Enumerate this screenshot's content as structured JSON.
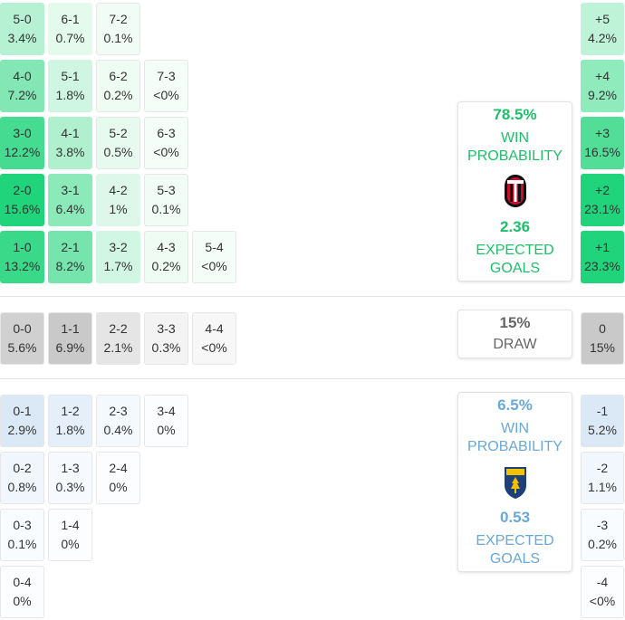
{
  "colors": {
    "home_accent": "#1fbf6a",
    "away_accent": "#6aa8d8",
    "draw_text": "#666666"
  },
  "home_scores": [
    [
      {
        "s": "5-0",
        "p": "3.4%"
      },
      {
        "s": "6-1",
        "p": "0.7%"
      },
      {
        "s": "7-2",
        "p": "0.1%"
      }
    ],
    [
      {
        "s": "4-0",
        "p": "7.2%"
      },
      {
        "s": "5-1",
        "p": "1.8%"
      },
      {
        "s": "6-2",
        "p": "0.2%"
      },
      {
        "s": "7-3",
        "p": "<0%"
      }
    ],
    [
      {
        "s": "3-0",
        "p": "12.2%"
      },
      {
        "s": "4-1",
        "p": "3.8%"
      },
      {
        "s": "5-2",
        "p": "0.5%"
      },
      {
        "s": "6-3",
        "p": "<0%"
      }
    ],
    [
      {
        "s": "2-0",
        "p": "15.6%"
      },
      {
        "s": "3-1",
        "p": "6.4%"
      },
      {
        "s": "4-2",
        "p": "1%"
      },
      {
        "s": "5-3",
        "p": "0.1%"
      }
    ],
    [
      {
        "s": "1-0",
        "p": "13.2%"
      },
      {
        "s": "2-1",
        "p": "8.2%"
      },
      {
        "s": "3-2",
        "p": "1.7%"
      },
      {
        "s": "4-3",
        "p": "0.2%"
      },
      {
        "s": "5-4",
        "p": "<0%"
      }
    ]
  ],
  "draw_scores": [
    [
      {
        "s": "0-0",
        "p": "5.6%"
      },
      {
        "s": "1-1",
        "p": "6.9%"
      },
      {
        "s": "2-2",
        "p": "2.1%"
      },
      {
        "s": "3-3",
        "p": "0.3%"
      },
      {
        "s": "4-4",
        "p": "<0%"
      }
    ]
  ],
  "away_scores": [
    [
      {
        "s": "0-1",
        "p": "2.9%"
      },
      {
        "s": "1-2",
        "p": "1.8%"
      },
      {
        "s": "2-3",
        "p": "0.4%"
      },
      {
        "s": "3-4",
        "p": "0%"
      }
    ],
    [
      {
        "s": "0-2",
        "p": "0.8%"
      },
      {
        "s": "1-3",
        "p": "0.3%"
      },
      {
        "s": "2-4",
        "p": "0%"
      }
    ],
    [
      {
        "s": "0-3",
        "p": "0.1%"
      },
      {
        "s": "1-4",
        "p": "0%"
      }
    ],
    [
      {
        "s": "0-4",
        "p": "0%"
      }
    ]
  ],
  "margins": [
    {
      "m": "+5",
      "p": "4.2%"
    },
    {
      "m": "+4",
      "p": "9.2%"
    },
    {
      "m": "+3",
      "p": "16.5%"
    },
    {
      "m": "+2",
      "p": "23.1%"
    },
    {
      "m": "+1",
      "p": "23.3%"
    },
    {
      "m": "0",
      "p": "15%"
    },
    {
      "m": "-1",
      "p": "5.2%"
    },
    {
      "m": "-2",
      "p": "1.1%"
    },
    {
      "m": "-3",
      "p": "0.2%"
    },
    {
      "m": "-4",
      "p": "<0%"
    }
  ],
  "home_card": {
    "win_pct": "78.5%",
    "win_label_1": "WIN",
    "win_label_2": "PROBABILITY",
    "team_logo": "ac-milan-crest-icon",
    "xg": "2.36",
    "xg_label_1": "EXPECTED",
    "xg_label_2": "GOALS"
  },
  "draw_card": {
    "pct": "15%",
    "label": "DRAW"
  },
  "away_card": {
    "win_pct": "6.5%",
    "win_label_1": "WIN",
    "win_label_2": "PROBABILITY",
    "team_logo": "lecce-crest-icon",
    "xg": "0.53",
    "xg_label_1": "EXPECTED",
    "xg_label_2": "GOALS"
  }
}
